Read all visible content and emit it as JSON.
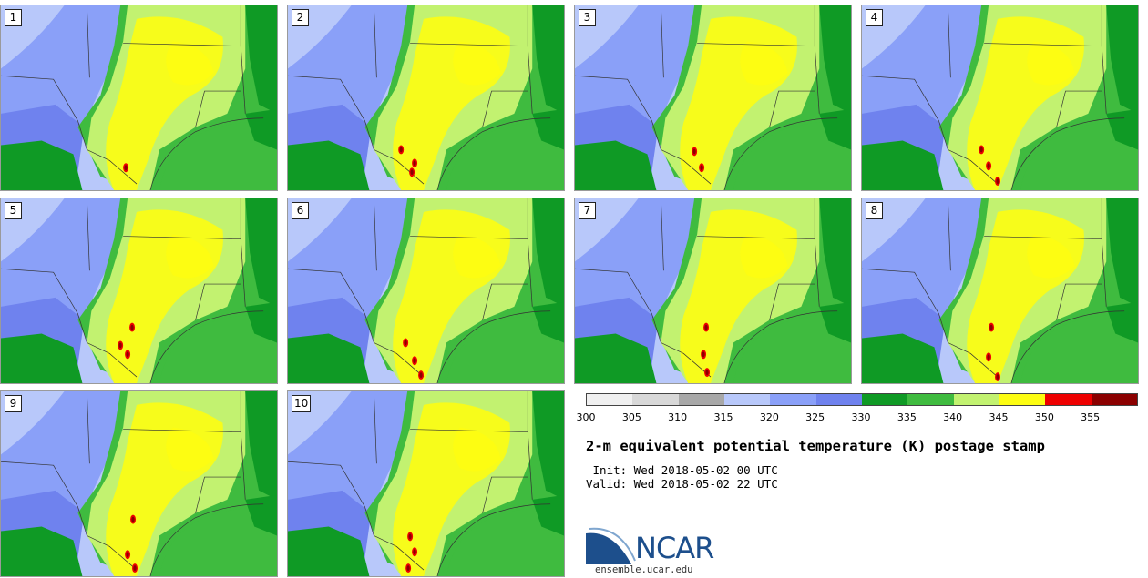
{
  "members": [
    "1",
    "2",
    "3",
    "4",
    "5",
    "6",
    "7",
    "8",
    "9",
    "10"
  ],
  "colorbar": {
    "colors": [
      "#f0f0f0",
      "#d8d8d8",
      "#a8a8a8",
      "#b8c8fa",
      "#8aa0f8",
      "#6f82ee",
      "#0f9a25",
      "#3fbb3f",
      "#c2f270",
      "#fdfd12",
      "#ee0000",
      "#8b0000"
    ],
    "ticks": [
      "300",
      "305",
      "310",
      "315",
      "320",
      "325",
      "330",
      "335",
      "340",
      "345",
      "350",
      "355"
    ]
  },
  "title": "2-m equivalent potential temperature (K) postage stamp",
  "init_line": " Init: Wed 2018-05-02 00 UTC",
  "valid_line": "Valid: Wed 2018-05-02 22 UTC",
  "logo": {
    "name": "NCAR",
    "url": "ensemble.ucar.edu",
    "colors": {
      "blue": "#1d4f8c",
      "light": "#7fa6cf"
    }
  }
}
